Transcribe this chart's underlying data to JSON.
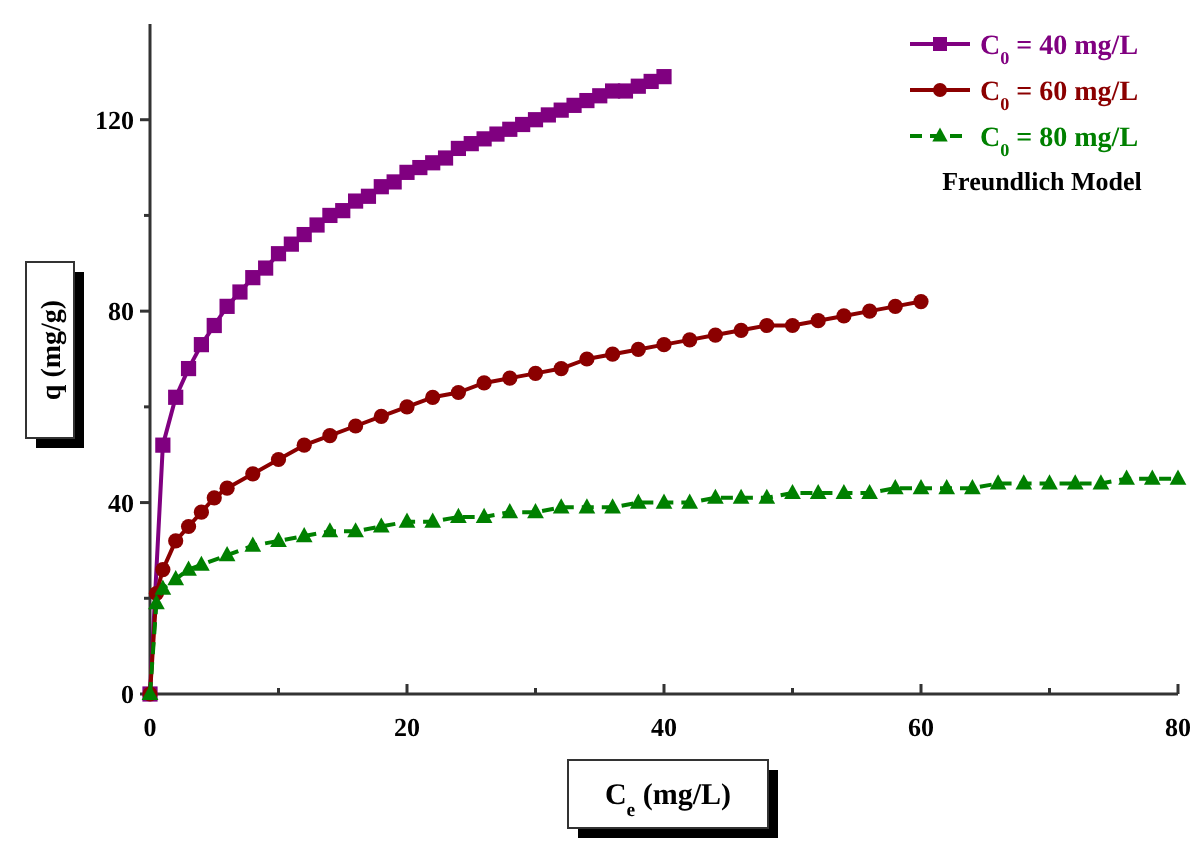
{
  "chart_data": {
    "type": "line",
    "xlabel": "C$_{e}$ (mg/L)",
    "ylabel": "q (mg/g)",
    "legend_title": "Freundlich Model",
    "xlim": [
      0,
      80
    ],
    "ylim": [
      0,
      140
    ],
    "xticks": [
      0,
      {
        "value": 10,
        "label": null
      },
      20,
      {
        "value": 30,
        "label": null
      },
      40,
      {
        "value": 50,
        "label": null
      },
      60,
      {
        "value": 70,
        "label": null
      },
      80
    ],
    "yticks": [
      0,
      {
        "value": 20,
        "label": null
      },
      40,
      {
        "value": 60,
        "label": null
      },
      80,
      {
        "value": 100,
        "label": null
      },
      120
    ],
    "grid": false,
    "legend": "top right",
    "series": [
      {
        "name": "C$_{0}$ = 40 mg/L",
        "color": "#800080",
        "marker": "square",
        "line_style": "solid",
        "x": [
          0,
          1,
          2,
          3,
          4,
          5,
          6,
          7,
          8,
          9,
          10,
          11,
          12,
          13,
          14,
          15,
          16,
          17,
          18,
          19,
          20,
          21,
          22,
          23,
          24,
          25,
          26,
          27,
          28,
          29,
          30,
          31,
          32,
          33,
          34,
          35,
          36,
          37,
          38,
          39,
          40
        ],
        "values": [
          0,
          52,
          62,
          68,
          73,
          77,
          81,
          84,
          87,
          89,
          92,
          94,
          96,
          98,
          100,
          101,
          103,
          104,
          106,
          107,
          109,
          110,
          111,
          112,
          114,
          115,
          116,
          117,
          118,
          119,
          120,
          121,
          122,
          123,
          124,
          125,
          126,
          126,
          127,
          128,
          129
        ]
      },
      {
        "name": "C$_{0}$ = 60 mg/L",
        "color": "#8b0000",
        "marker": "circle",
        "line_style": "solid",
        "x": [
          0,
          0.5,
          1,
          2,
          3,
          4,
          5,
          6,
          8,
          10,
          12,
          14,
          16,
          18,
          20,
          22,
          24,
          26,
          28,
          30,
          32,
          34,
          36,
          38,
          40,
          42,
          44,
          46,
          48,
          50,
          52,
          54,
          56,
          58,
          60
        ],
        "values": [
          0,
          21,
          26,
          32,
          35,
          38,
          41,
          43,
          46,
          49,
          52,
          54,
          56,
          58,
          60,
          62,
          63,
          65,
          66,
          67,
          68,
          70,
          71,
          72,
          73,
          74,
          75,
          76,
          77,
          77,
          78,
          79,
          80,
          81,
          82
        ]
      },
      {
        "name": "C$_{0}$ = 80 mg/L",
        "color": "#008000",
        "marker": "triangle",
        "line_style": "dashed",
        "x": [
          0,
          0.5,
          1,
          2,
          3,
          4,
          6,
          8,
          10,
          12,
          14,
          16,
          18,
          20,
          22,
          24,
          26,
          28,
          30,
          32,
          34,
          36,
          38,
          40,
          42,
          44,
          46,
          48,
          50,
          52,
          54,
          56,
          58,
          60,
          62,
          64,
          66,
          68,
          70,
          72,
          74,
          76,
          78,
          80
        ],
        "values": [
          0,
          19,
          22,
          24,
          26,
          27,
          29,
          31,
          32,
          33,
          34,
          34,
          35,
          36,
          36,
          37,
          37,
          38,
          38,
          39,
          39,
          39,
          40,
          40,
          40,
          41,
          41,
          41,
          42,
          42,
          42,
          42,
          43,
          43,
          43,
          43,
          44,
          44,
          44,
          44,
          44,
          45,
          45,
          45
        ]
      }
    ]
  }
}
